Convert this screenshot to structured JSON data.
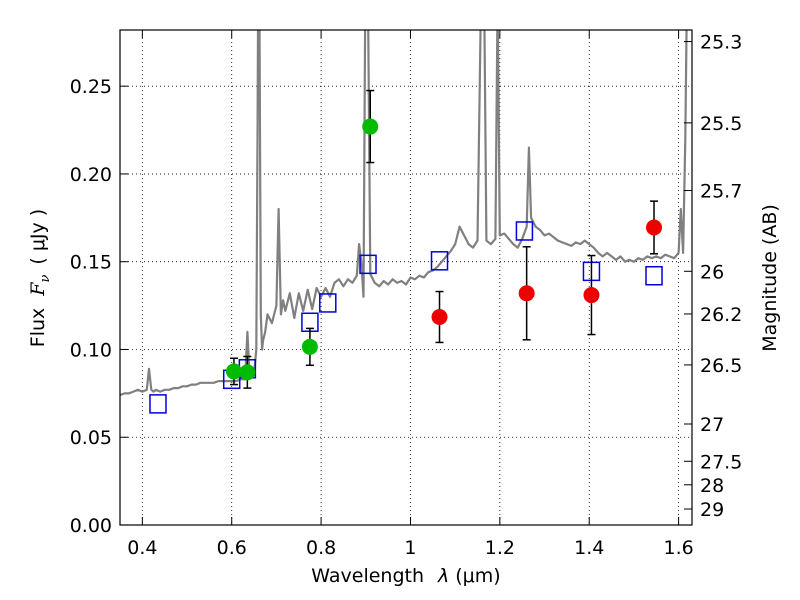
{
  "chart_data": {
    "type": "scatter",
    "xlabel": "Wavelength",
    "xlabel_symbol": "λ",
    "xlabel_unit": "(μm)",
    "ylabel": "Flux",
    "ylabel_symbol": "F",
    "ylabel_subscript": "ν",
    "ylabel_unit": "( μJy )",
    "y2label": "Magnitude (AB)",
    "xlim": [
      0.35,
      1.63
    ],
    "ylim": [
      0.0,
      0.282
    ],
    "grid": "dotted",
    "x_ticks": [
      {
        "value": 0.4,
        "label": "0.4"
      },
      {
        "value": 0.6,
        "label": "0.6"
      },
      {
        "value": 0.8,
        "label": "0.8"
      },
      {
        "value": 1.0,
        "label": "1"
      },
      {
        "value": 1.2,
        "label": "1.2"
      },
      {
        "value": 1.4,
        "label": "1.4"
      },
      {
        "value": 1.6,
        "label": "1.6"
      }
    ],
    "y_ticks": [
      {
        "value": 0.0,
        "label": "0.00"
      },
      {
        "value": 0.05,
        "label": "0.05"
      },
      {
        "value": 0.1,
        "label": "0.10"
      },
      {
        "value": 0.15,
        "label": "0.15"
      },
      {
        "value": 0.2,
        "label": "0.20"
      },
      {
        "value": 0.25,
        "label": "0.25"
      }
    ],
    "y2_ticks": [
      {
        "mag": 25.3,
        "label": "25.3"
      },
      {
        "mag": 25.5,
        "label": "25.5"
      },
      {
        "mag": 25.7,
        "label": "25.7"
      },
      {
        "mag": 26.0,
        "label": "26"
      },
      {
        "mag": 26.2,
        "label": "26.2"
      },
      {
        "mag": 26.5,
        "label": "26.5"
      },
      {
        "mag": 27.0,
        "label": "27"
      },
      {
        "mag": 27.5,
        "label": "27.5"
      },
      {
        "mag": 28.0,
        "label": "28"
      },
      {
        "mag": 29.0,
        "label": "29"
      }
    ],
    "spectrum": {
      "name": "model spectrum",
      "color": "#808080",
      "x": [
        0.35,
        0.36,
        0.37,
        0.38,
        0.39,
        0.4,
        0.41,
        0.415,
        0.42,
        0.425,
        0.43,
        0.44,
        0.45,
        0.46,
        0.47,
        0.48,
        0.49,
        0.5,
        0.51,
        0.52,
        0.53,
        0.54,
        0.55,
        0.56,
        0.57,
        0.58,
        0.59,
        0.6,
        0.61,
        0.62,
        0.63,
        0.635,
        0.64,
        0.645,
        0.65,
        0.655,
        0.658,
        0.66,
        0.662,
        0.665,
        0.668,
        0.67,
        0.675,
        0.68,
        0.69,
        0.7,
        0.705,
        0.71,
        0.715,
        0.72,
        0.73,
        0.74,
        0.75,
        0.76,
        0.77,
        0.78,
        0.79,
        0.8,
        0.81,
        0.82,
        0.83,
        0.84,
        0.85,
        0.86,
        0.87,
        0.88,
        0.885,
        0.89,
        0.895,
        0.9,
        0.905,
        0.91,
        0.92,
        0.93,
        0.94,
        0.95,
        0.96,
        0.97,
        0.98,
        0.99,
        1.0,
        1.01,
        1.02,
        1.03,
        1.04,
        1.05,
        1.06,
        1.07,
        1.08,
        1.09,
        1.1,
        1.11,
        1.12,
        1.13,
        1.14,
        1.15,
        1.16,
        1.165,
        1.17,
        1.18,
        1.19,
        1.195,
        1.2,
        1.21,
        1.22,
        1.23,
        1.24,
        1.25,
        1.26,
        1.265,
        1.27,
        1.28,
        1.29,
        1.3,
        1.31,
        1.32,
        1.33,
        1.34,
        1.35,
        1.36,
        1.37,
        1.38,
        1.39,
        1.4,
        1.41,
        1.42,
        1.43,
        1.44,
        1.45,
        1.46,
        1.47,
        1.48,
        1.49,
        1.5,
        1.51,
        1.52,
        1.53,
        1.54,
        1.55,
        1.56,
        1.57,
        1.58,
        1.59,
        1.6,
        1.605,
        1.61,
        1.615,
        1.62,
        1.63
      ],
      "y": [
        0.074,
        0.075,
        0.075,
        0.076,
        0.077,
        0.076,
        0.077,
        0.089,
        0.077,
        0.076,
        0.077,
        0.076,
        0.077,
        0.077,
        0.078,
        0.078,
        0.079,
        0.079,
        0.08,
        0.08,
        0.081,
        0.081,
        0.081,
        0.081,
        0.082,
        0.082,
        0.082,
        0.082,
        0.082,
        0.083,
        0.083,
        0.11,
        0.084,
        0.085,
        0.086,
        0.1,
        0.23,
        0.35,
        0.3,
        0.12,
        0.1,
        0.105,
        0.11,
        0.12,
        0.115,
        0.125,
        0.18,
        0.12,
        0.128,
        0.122,
        0.132,
        0.118,
        0.132,
        0.122,
        0.134,
        0.123,
        0.135,
        0.13,
        0.135,
        0.13,
        0.138,
        0.14,
        0.136,
        0.14,
        0.138,
        0.142,
        0.16,
        0.15,
        0.13,
        0.35,
        0.3,
        0.143,
        0.138,
        0.136,
        0.139,
        0.137,
        0.14,
        0.138,
        0.139,
        0.137,
        0.141,
        0.14,
        0.142,
        0.141,
        0.144,
        0.145,
        0.147,
        0.15,
        0.153,
        0.156,
        0.16,
        0.17,
        0.165,
        0.16,
        0.158,
        0.162,
        0.34,
        0.3,
        0.162,
        0.16,
        0.163,
        0.3,
        0.165,
        0.166,
        0.163,
        0.16,
        0.158,
        0.163,
        0.17,
        0.215,
        0.175,
        0.17,
        0.168,
        0.165,
        0.166,
        0.164,
        0.162,
        0.161,
        0.16,
        0.159,
        0.161,
        0.16,
        0.162,
        0.16,
        0.158,
        0.155,
        0.153,
        0.155,
        0.153,
        0.151,
        0.153,
        0.15,
        0.151,
        0.15,
        0.152,
        0.151,
        0.153,
        0.152,
        0.153,
        0.152,
        0.154,
        0.153,
        0.152,
        0.155,
        0.18,
        0.155,
        0.22,
        0.33,
        0.35
      ]
    },
    "series": [
      {
        "name": "green points",
        "marker": "circle",
        "color": "#00bb00",
        "points": [
          {
            "x": 0.605,
            "y": 0.0875,
            "err": 0.0075
          },
          {
            "x": 0.635,
            "y": 0.087,
            "err": 0.009
          },
          {
            "x": 0.775,
            "y": 0.1015,
            "err": 0.0105
          },
          {
            "x": 0.91,
            "y": 0.227,
            "err": 0.0205
          }
        ]
      },
      {
        "name": "red points",
        "marker": "circle",
        "color": "#ee0000",
        "points": [
          {
            "x": 1.065,
            "y": 0.1185,
            "err": 0.0145
          },
          {
            "x": 1.26,
            "y": 0.132,
            "err": 0.0265
          },
          {
            "x": 1.405,
            "y": 0.131,
            "err": 0.0225
          },
          {
            "x": 1.545,
            "y": 0.1695,
            "err": 0.015
          }
        ]
      },
      {
        "name": "model photometry",
        "marker": "open-square",
        "color": "#0000dd",
        "points": [
          {
            "x": 0.435,
            "y": 0.069
          },
          {
            "x": 0.6,
            "y": 0.083
          },
          {
            "x": 0.635,
            "y": 0.089
          },
          {
            "x": 0.775,
            "y": 0.1155
          },
          {
            "x": 0.815,
            "y": 0.1265
          },
          {
            "x": 0.905,
            "y": 0.1485
          },
          {
            "x": 1.065,
            "y": 0.1505
          },
          {
            "x": 1.255,
            "y": 0.1675
          },
          {
            "x": 1.405,
            "y": 0.1445
          },
          {
            "x": 1.545,
            "y": 0.142
          }
        ]
      }
    ]
  }
}
